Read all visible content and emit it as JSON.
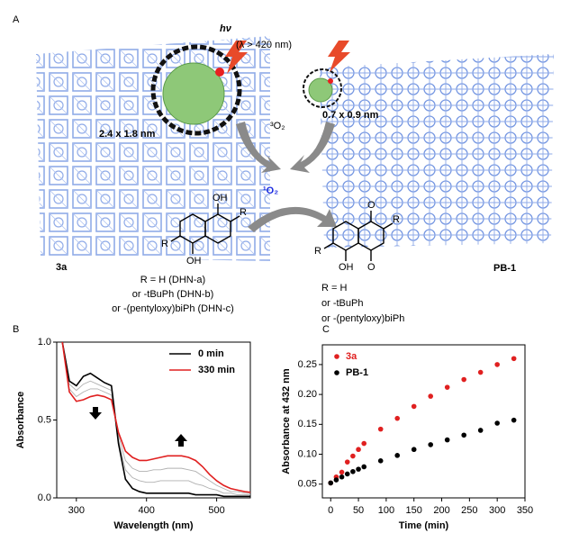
{
  "panels": {
    "A": {
      "panel_label": "A",
      "light": "hν",
      "wavelength": "(λ > 420 nm)",
      "pore_3a": "2.4 x 1.8 nm",
      "pore_pb1": "0.7 x 0.9 nm",
      "triplet_oxygen": "³O₂",
      "singlet_oxygen": "¹O₂",
      "framework_left": "3a",
      "framework_right": "PB-1",
      "left_molecule_atoms": [
        "OH",
        "R",
        "R",
        "OH"
      ],
      "right_molecule_atoms": [
        "O",
        "R",
        "R",
        "OH",
        "O"
      ],
      "reactant_lines": [
        "R = H (DHN-a)",
        "or -tBuPh (DHN-b)",
        "or -(pentyloxy)biPh (DHN-c)"
      ],
      "product_lines": [
        "R = H",
        "or -tBuPh",
        "or -(pentyloxy)biPh"
      ]
    }
  },
  "chart_data": [
    {
      "type": "line",
      "panel_label": "B",
      "x_label": "Wavelength (nm)",
      "y_label": "Absorbance",
      "x": [
        280,
        290,
        300,
        310,
        320,
        330,
        340,
        350,
        360,
        370,
        380,
        390,
        400,
        410,
        420,
        430,
        440,
        450,
        460,
        470,
        480,
        490,
        500,
        510,
        520,
        530,
        540,
        550
      ],
      "series": [
        {
          "color": "#b0b0b0",
          "values": [
            1.0,
            0.73,
            0.69,
            0.73,
            0.75,
            0.73,
            0.71,
            0.69,
            0.37,
            0.18,
            0.13,
            0.11,
            0.1,
            0.1,
            0.11,
            0.11,
            0.11,
            0.11,
            0.11,
            0.09,
            0.08,
            0.06,
            0.05,
            0.03,
            0.03,
            0.02,
            0.02,
            0.02
          ]
        },
        {
          "color": "#b0b0b0",
          "values": [
            1.0,
            0.7,
            0.65,
            0.68,
            0.7,
            0.7,
            0.68,
            0.66,
            0.4,
            0.24,
            0.19,
            0.17,
            0.17,
            0.18,
            0.18,
            0.19,
            0.19,
            0.19,
            0.18,
            0.17,
            0.14,
            0.11,
            0.08,
            0.06,
            0.04,
            0.04,
            0.03,
            0.03
          ]
        },
        {
          "name": "0 min",
          "color": "#000000",
          "values": [
            1.0,
            0.75,
            0.72,
            0.78,
            0.8,
            0.77,
            0.74,
            0.72,
            0.35,
            0.12,
            0.06,
            0.04,
            0.03,
            0.03,
            0.03,
            0.03,
            0.03,
            0.03,
            0.03,
            0.02,
            0.02,
            0.02,
            0.02,
            0.01,
            0.01,
            0.01,
            0.01,
            0.01
          ]
        },
        {
          "name": "330 min",
          "color": "#e02020",
          "values": [
            1.0,
            0.68,
            0.62,
            0.63,
            0.65,
            0.66,
            0.65,
            0.63,
            0.42,
            0.3,
            0.26,
            0.24,
            0.24,
            0.25,
            0.26,
            0.27,
            0.27,
            0.27,
            0.26,
            0.24,
            0.2,
            0.15,
            0.11,
            0.08,
            0.06,
            0.05,
            0.04,
            0.035
          ]
        }
      ],
      "xlim": [
        272,
        548
      ],
      "ylim": [
        0,
        1.0
      ],
      "xticks": [
        300,
        400,
        500
      ],
      "yticks": [
        {
          "value": 0,
          "label": "0.0"
        },
        0.5,
        {
          "value": 1.0,
          "label": "1.0"
        }
      ],
      "legend": "top-right"
    },
    {
      "type": "scatter",
      "panel_label": "C",
      "x_label": "Time (min)",
      "y_label": "Absorbance at 432 nm",
      "x": [
        0,
        10,
        20,
        30,
        40,
        50,
        60,
        90,
        120,
        150,
        180,
        210,
        240,
        270,
        300,
        330
      ],
      "series": [
        {
          "name": "3a",
          "color": "#e02020",
          "values": [
            0.052,
            0.062,
            0.07,
            0.087,
            0.097,
            0.108,
            0.118,
            0.142,
            0.16,
            0.18,
            0.197,
            0.212,
            0.225,
            0.237,
            0.25,
            0.26
          ]
        },
        {
          "name": "PB-1",
          "color": "#000000",
          "values": [
            0.052,
            0.057,
            0.062,
            0.067,
            0.071,
            0.075,
            0.079,
            0.089,
            0.098,
            0.108,
            0.116,
            0.124,
            0.132,
            0.14,
            0.152,
            0.157
          ]
        }
      ],
      "xlim": [
        -15,
        350
      ],
      "ylim": [
        0.027,
        0.283
      ],
      "xticks": [
        0,
        50,
        100,
        150,
        200,
        250,
        300,
        350
      ],
      "yticks": [
        0.05,
        {
          "value": 0.1,
          "label": "0.10"
        },
        0.15,
        {
          "value": 0.2,
          "label": "0.20"
        },
        0.25
      ],
      "legend": "top-left"
    }
  ]
}
